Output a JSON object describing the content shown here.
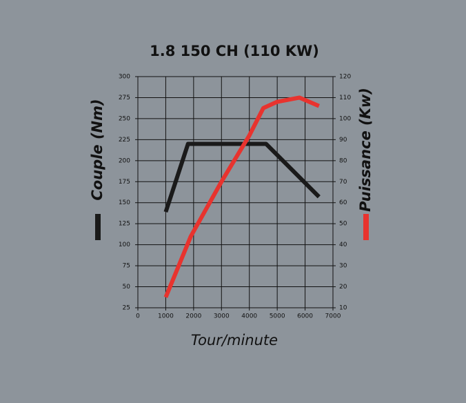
{
  "chart_data": {
    "type": "line",
    "title": "1.8 150 CH (110 KW)",
    "x_label": "Tour/minute",
    "xlim": [
      0,
      7000
    ],
    "xticks": [
      0,
      1000,
      2000,
      3000,
      4000,
      5000,
      6000,
      7000
    ],
    "ylim": [
      25,
      300
    ],
    "yticks": [
      25,
      50,
      75,
      100,
      125,
      150,
      175,
      200,
      225,
      250,
      275,
      300
    ],
    "y2lim": [
      10,
      120
    ],
    "y2ticks": [
      10,
      20,
      30,
      40,
      50,
      60,
      70,
      80,
      90,
      100,
      110,
      120
    ],
    "grid": true,
    "series": [
      {
        "name": "Couple (Nm)",
        "color": "#1a1a1a",
        "x": [
          1000,
          1800,
          4600,
          6500
        ],
        "values": [
          139,
          220,
          220,
          157
        ]
      },
      {
        "name": "Puissance (Kw)",
        "color": "#e8332e",
        "axis": "y2",
        "x": [
          1000,
          1900,
          3000,
          4000,
          4500,
          5000,
          5800,
          6500
        ],
        "values": [
          15,
          44,
          70,
          92,
          105,
          108,
          110,
          106
        ]
      }
    ]
  }
}
